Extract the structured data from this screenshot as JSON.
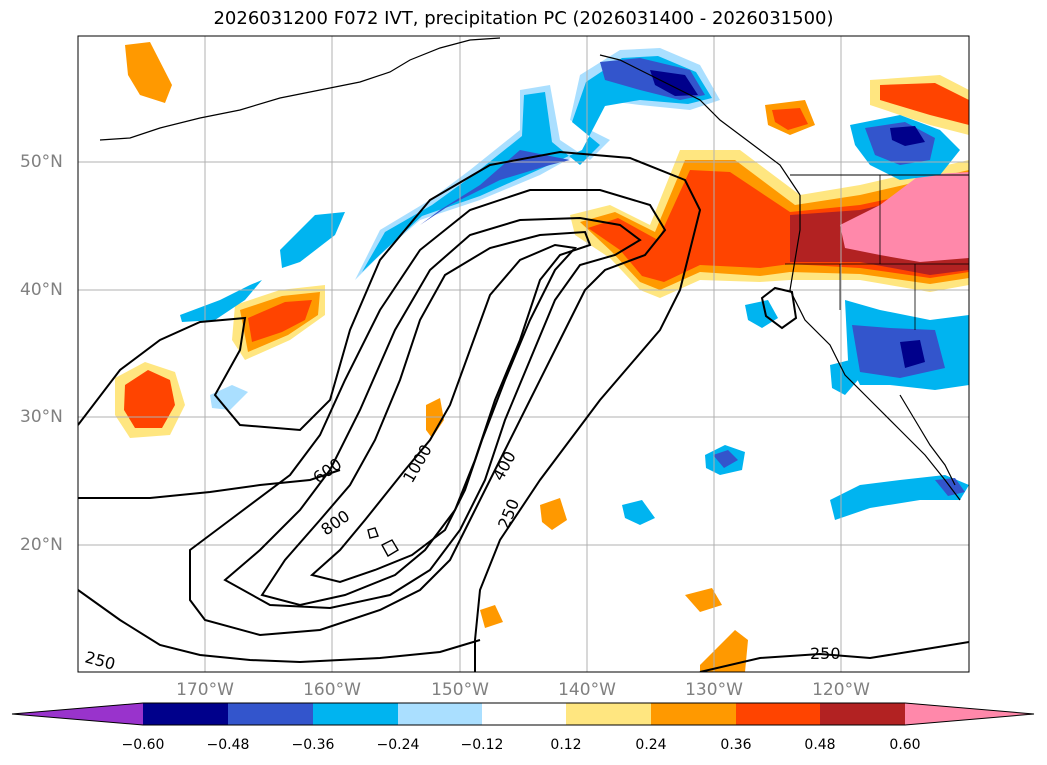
{
  "title": "2026031200 F072 IVT, precipitation PC (2026031400 - 2026031500)",
  "latitude_labels": [
    "50°N",
    "40°N",
    "30°N",
    "20°N"
  ],
  "longitude_labels": [
    "170°W",
    "160°W",
    "150°W",
    "140°W",
    "130°W",
    "120°W"
  ],
  "ivt_contour_labels": [
    "250",
    "400",
    "600",
    "800",
    "1000",
    "250",
    "250"
  ],
  "colorbar": {
    "ticks": [
      "−0.60",
      "−0.48",
      "−0.36",
      "−0.24",
      "−0.12",
      "0.12",
      "0.24",
      "0.36",
      "0.48",
      "0.60"
    ],
    "colors": [
      "#9933cc",
      "#00008b",
      "#3355cc",
      "#00b4f0",
      "#aadfff",
      "#ffffff",
      "#ffe680",
      "#ff9900",
      "#ff4400",
      "#b22222",
      "#ff88aa"
    ]
  },
  "colors": {
    "contour": "#000000",
    "grid": "#b0b0b0",
    "coast": "#000000"
  }
}
